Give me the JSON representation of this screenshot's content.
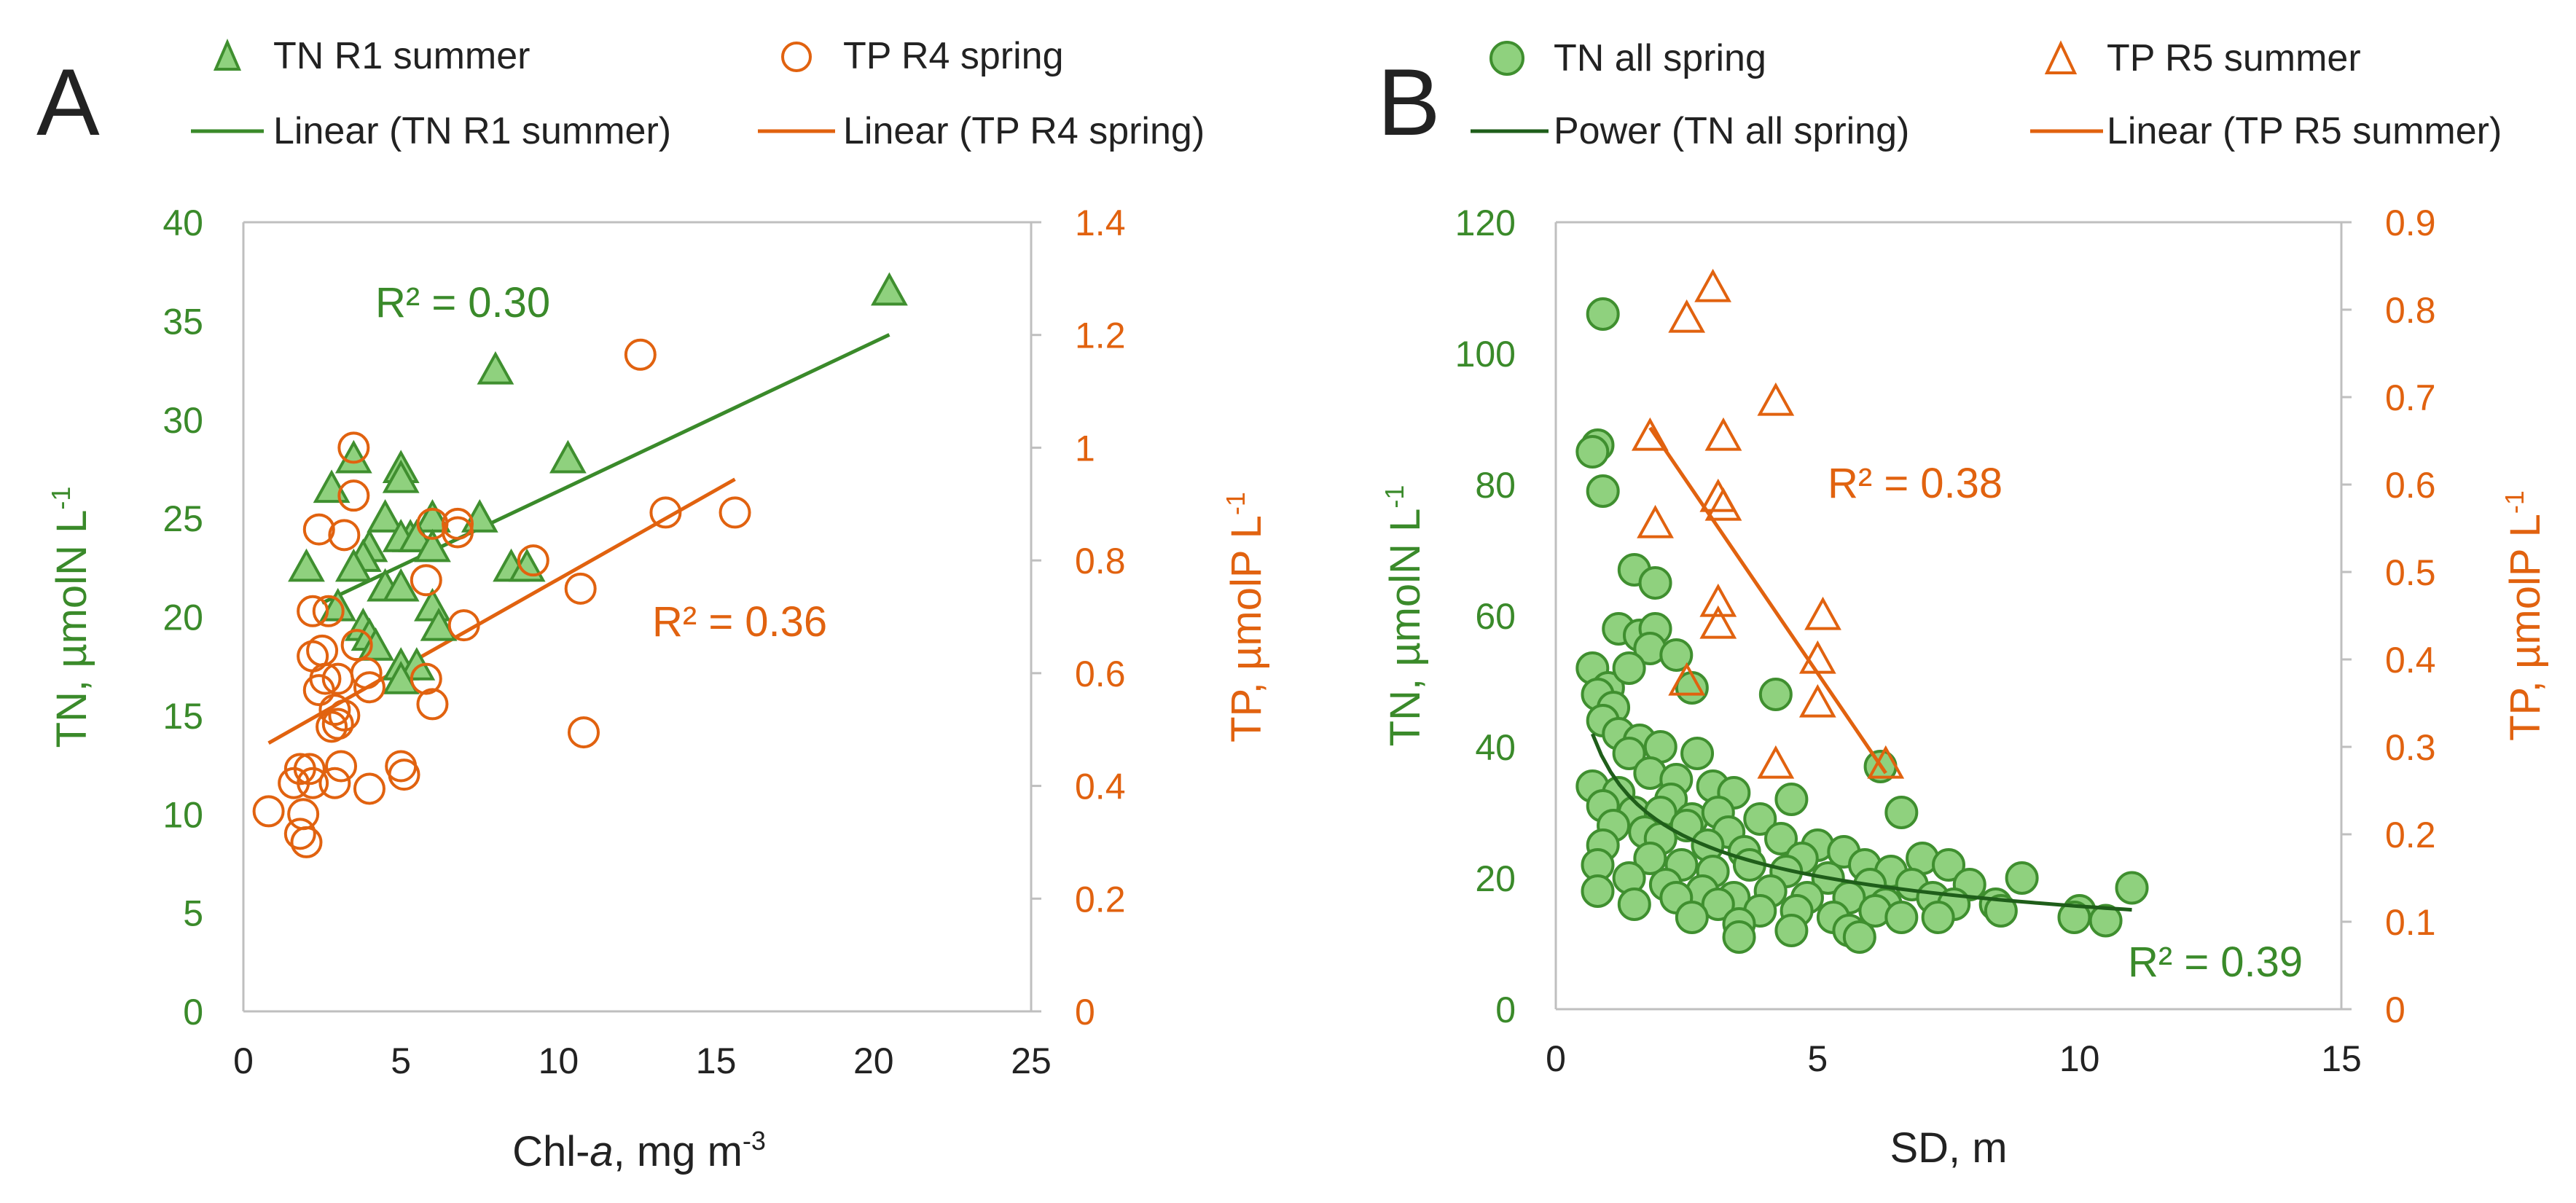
{
  "colors": {
    "green": "#3a8a2a",
    "green_fill": "#8fd17e",
    "green_stroke": "#3f8f2f",
    "dark_green": "#1f5e1a",
    "orange": "#e1620f",
    "axis": "#bfbfbf",
    "text": "#222222"
  },
  "chart_data": [
    {
      "panel": "A",
      "type": "scatter",
      "xlabel_prefix": "Chl-",
      "xlabel_italic": "a",
      "xlabel_suffix": ", mg m",
      "xlabel_sup": "-3",
      "ylabel_left": "TN, µmolN L",
      "ylabel_left_sup": "-1",
      "ylabel_right": "TP, µmolP L",
      "ylabel_right_sup": "-1",
      "xlim": [
        0,
        25
      ],
      "ylim_left": [
        0,
        40
      ],
      "ylim_right": [
        0,
        1.4
      ],
      "x_ticks": [
        "0",
        "5",
        "10",
        "15",
        "20",
        "25"
      ],
      "y_left_ticks": [
        "0",
        "5",
        "10",
        "15",
        "20",
        "25",
        "30",
        "35",
        "40"
      ],
      "y_right_ticks": [
        "0",
        "0.2",
        "0.4",
        "0.6",
        "0.8",
        "1",
        "1.2",
        "1.4"
      ],
      "legend": {
        "s1": "TN R1 summer",
        "s2": "TP R4 spring",
        "t1": "Linear (TN R1 summer)",
        "t2": "Linear (TP R4 spring)"
      },
      "annotations": {
        "r2_green": "R² = 0.30",
        "r2_orange": "R² = 0.36"
      },
      "series": [
        {
          "name": "TN R1 summer",
          "axis": "left",
          "marker": "triangle-filled",
          "points": [
            [
              20.5,
              36.5
            ],
            [
              8.0,
              32.5
            ],
            [
              10.3,
              28
            ],
            [
              3.5,
              28
            ],
            [
              5.0,
              27.5
            ],
            [
              5.0,
              27
            ],
            [
              2.8,
              26.5
            ],
            [
              7.5,
              25
            ],
            [
              4.5,
              25
            ],
            [
              6.0,
              25
            ],
            [
              5.3,
              24
            ],
            [
              5.0,
              24
            ],
            [
              4.0,
              23.5
            ],
            [
              3.8,
              23
            ],
            [
              5.5,
              24
            ],
            [
              6.0,
              23.5
            ],
            [
              2.0,
              22.5
            ],
            [
              8.5,
              22.5
            ],
            [
              3.5,
              22.5
            ],
            [
              9.0,
              22.5
            ],
            [
              4.5,
              21.5
            ],
            [
              5.0,
              21.5
            ],
            [
              3.0,
              20.5
            ],
            [
              6.0,
              20.5
            ],
            [
              3.8,
              19.5
            ],
            [
              4.0,
              19
            ],
            [
              4.2,
              18.5
            ],
            [
              6.2,
              19.5
            ],
            [
              5.0,
              17.5
            ],
            [
              5.5,
              17.5
            ],
            [
              5.0,
              16.8
            ]
          ]
        },
        {
          "name": "TP R4 spring",
          "axis": "right",
          "marker": "circle-open",
          "points": [
            [
              12.6,
              1.165
            ],
            [
              15.6,
              0.885
            ],
            [
              13.4,
              0.885
            ],
            [
              3.5,
              1.0
            ],
            [
              3.5,
              0.915
            ],
            [
              2.4,
              0.855
            ],
            [
              3.2,
              0.845
            ],
            [
              6.0,
              0.865
            ],
            [
              6.8,
              0.865
            ],
            [
              6.8,
              0.85
            ],
            [
              9.2,
              0.8
            ],
            [
              5.8,
              0.765
            ],
            [
              10.7,
              0.75
            ],
            [
              2.2,
              0.71
            ],
            [
              2.7,
              0.71
            ],
            [
              7.0,
              0.685
            ],
            [
              3.6,
              0.65
            ],
            [
              2.2,
              0.63
            ],
            [
              2.5,
              0.64
            ],
            [
              3.9,
              0.6
            ],
            [
              2.6,
              0.59
            ],
            [
              3.0,
              0.59
            ],
            [
              4.0,
              0.575
            ],
            [
              5.8,
              0.59
            ],
            [
              2.4,
              0.57
            ],
            [
              6.0,
              0.545
            ],
            [
              2.9,
              0.535
            ],
            [
              3.2,
              0.525
            ],
            [
              3.0,
              0.51
            ],
            [
              2.8,
              0.505
            ],
            [
              10.8,
              0.495
            ],
            [
              1.8,
              0.43
            ],
            [
              2.1,
              0.43
            ],
            [
              3.1,
              0.435
            ],
            [
              5.0,
              0.435
            ],
            [
              5.1,
              0.42
            ],
            [
              2.2,
              0.405
            ],
            [
              2.9,
              0.405
            ],
            [
              1.6,
              0.405
            ],
            [
              4.0,
              0.395
            ],
            [
              0.8,
              0.355
            ],
            [
              1.9,
              0.35
            ],
            [
              1.8,
              0.315
            ],
            [
              2.0,
              0.3
            ]
          ]
        }
      ],
      "trendlines": [
        {
          "name": "Linear (TN R1 summer)",
          "axis": "left",
          "kind": "linear",
          "from": [
            2.5,
            20.7
          ],
          "to": [
            20.5,
            34.3
          ]
        },
        {
          "name": "Linear (TP R4 spring)",
          "axis": "right",
          "kind": "linear",
          "from": [
            0.8,
            0.476
          ],
          "to": [
            15.6,
            0.944
          ]
        }
      ]
    },
    {
      "panel": "B",
      "type": "scatter",
      "xlabel": "SD, m",
      "ylabel_left": "TN, µmolN L",
      "ylabel_left_sup": "-1",
      "ylabel_right": "TP, µmolP L",
      "ylabel_right_sup": "-1",
      "xlim": [
        0,
        15
      ],
      "ylim_left": [
        0,
        120
      ],
      "ylim_right": [
        0,
        0.9
      ],
      "x_ticks": [
        "0",
        "5",
        "10",
        "15"
      ],
      "y_left_ticks": [
        "0",
        "20",
        "40",
        "60",
        "80",
        "100",
        "120"
      ],
      "y_right_ticks": [
        "0",
        "0.1",
        "0.2",
        "0.3",
        "0.4",
        "0.5",
        "0.6",
        "0.7",
        "0.8",
        "0.9"
      ],
      "legend": {
        "s1": "TN all spring",
        "s2": "TP R5 summer",
        "t1": "Power (TN all spring)",
        "t2": "Linear (TP R5 summer)"
      },
      "annotations": {
        "r2_green": "R² = 0.39",
        "r2_orange": "R² = 0.38"
      },
      "series": [
        {
          "name": "TN all spring",
          "axis": "left",
          "marker": "circle-filled",
          "points": [
            [
              0.9,
              106
            ],
            [
              0.8,
              86
            ],
            [
              0.7,
              85
            ],
            [
              0.9,
              79
            ],
            [
              1.5,
              67
            ],
            [
              1.9,
              65
            ],
            [
              1.2,
              58
            ],
            [
              1.6,
              57
            ],
            [
              1.9,
              58
            ],
            [
              1.8,
              55
            ],
            [
              2.3,
              54
            ],
            [
              0.7,
              52
            ],
            [
              1.0,
              49
            ],
            [
              1.4,
              52
            ],
            [
              2.6,
              49
            ],
            [
              4.2,
              48
            ],
            [
              0.8,
              48
            ],
            [
              1.1,
              46
            ],
            [
              0.9,
              44
            ],
            [
              1.2,
              42
            ],
            [
              1.6,
              41
            ],
            [
              2.0,
              40
            ],
            [
              2.7,
              39
            ],
            [
              1.4,
              39
            ],
            [
              6.2,
              37
            ],
            [
              1.8,
              36
            ],
            [
              2.3,
              35
            ],
            [
              0.7,
              34
            ],
            [
              1.2,
              33
            ],
            [
              2.2,
              32
            ],
            [
              3.0,
              34
            ],
            [
              3.4,
              33
            ],
            [
              4.5,
              32
            ],
            [
              0.9,
              31
            ],
            [
              1.5,
              30
            ],
            [
              2.0,
              30
            ],
            [
              2.6,
              29
            ],
            [
              3.1,
              30
            ],
            [
              3.9,
              29
            ],
            [
              6.6,
              30
            ],
            [
              1.1,
              28
            ],
            [
              1.7,
              27
            ],
            [
              2.5,
              28
            ],
            [
              3.3,
              27
            ],
            [
              4.3,
              26
            ],
            [
              5.0,
              25
            ],
            [
              5.5,
              24
            ],
            [
              7.0,
              23
            ],
            [
              2.0,
              26
            ],
            [
              2.9,
              25
            ],
            [
              3.6,
              24
            ],
            [
              4.7,
              23
            ],
            [
              5.9,
              22
            ],
            [
              6.4,
              21
            ],
            [
              7.5,
              22
            ],
            [
              0.9,
              25
            ],
            [
              1.8,
              23
            ],
            [
              2.4,
              22
            ],
            [
              3.0,
              21
            ],
            [
              3.7,
              22
            ],
            [
              4.4,
              21
            ],
            [
              5.2,
              20
            ],
            [
              6.0,
              19
            ],
            [
              6.8,
              19
            ],
            [
              7.9,
              19
            ],
            [
              8.9,
              20
            ],
            [
              0.8,
              22
            ],
            [
              1.4,
              20
            ],
            [
              2.1,
              19
            ],
            [
              2.8,
              18
            ],
            [
              3.4,
              17
            ],
            [
              4.1,
              18
            ],
            [
              4.8,
              17
            ],
            [
              5.6,
              17
            ],
            [
              6.3,
              16
            ],
            [
              7.2,
              17
            ],
            [
              8.4,
              16
            ],
            [
              10.0,
              15
            ],
            [
              11.0,
              18.5
            ],
            [
              0.8,
              18
            ],
            [
              1.5,
              16
            ],
            [
              2.3,
              17
            ],
            [
              3.1,
              16
            ],
            [
              3.9,
              15
            ],
            [
              4.6,
              15
            ],
            [
              5.3,
              14
            ],
            [
              6.1,
              15
            ],
            [
              7.6,
              16
            ],
            [
              8.5,
              15
            ],
            [
              9.9,
              14
            ],
            [
              10.5,
              13.5
            ],
            [
              2.6,
              14
            ],
            [
              3.5,
              13
            ],
            [
              4.5,
              12
            ],
            [
              5.6,
              12
            ],
            [
              3.5,
              11
            ],
            [
              5.8,
              11
            ],
            [
              6.6,
              14
            ],
            [
              7.3,
              14
            ]
          ]
        },
        {
          "name": "TP R5 summer",
          "axis": "right",
          "marker": "triangle-open",
          "points": [
            [
              3.0,
              0.825
            ],
            [
              2.5,
              0.79
            ],
            [
              4.2,
              0.695
            ],
            [
              1.8,
              0.655
            ],
            [
              3.2,
              0.655
            ],
            [
              3.1,
              0.585
            ],
            [
              3.2,
              0.575
            ],
            [
              1.9,
              0.555
            ],
            [
              3.1,
              0.465
            ],
            [
              3.1,
              0.44
            ],
            [
              5.1,
              0.45
            ],
            [
              5.0,
              0.4
            ],
            [
              2.5,
              0.375
            ],
            [
              5.0,
              0.35
            ],
            [
              4.2,
              0.28
            ],
            [
              6.3,
              0.28
            ]
          ]
        }
      ],
      "trendlines": [
        {
          "name": "Power (TN all spring)",
          "axis": "left",
          "kind": "power",
          "a": 36.8,
          "b": -0.37,
          "xmin": 0.7,
          "xmax": 11.0
        },
        {
          "name": "Linear (TP R5 summer)",
          "axis": "right",
          "kind": "linear",
          "from": [
            1.8,
            0.665
          ],
          "to": [
            6.3,
            0.27
          ]
        }
      ]
    }
  ],
  "panels": {
    "A": {
      "letter": "A"
    },
    "B": {
      "letter": "B"
    }
  }
}
